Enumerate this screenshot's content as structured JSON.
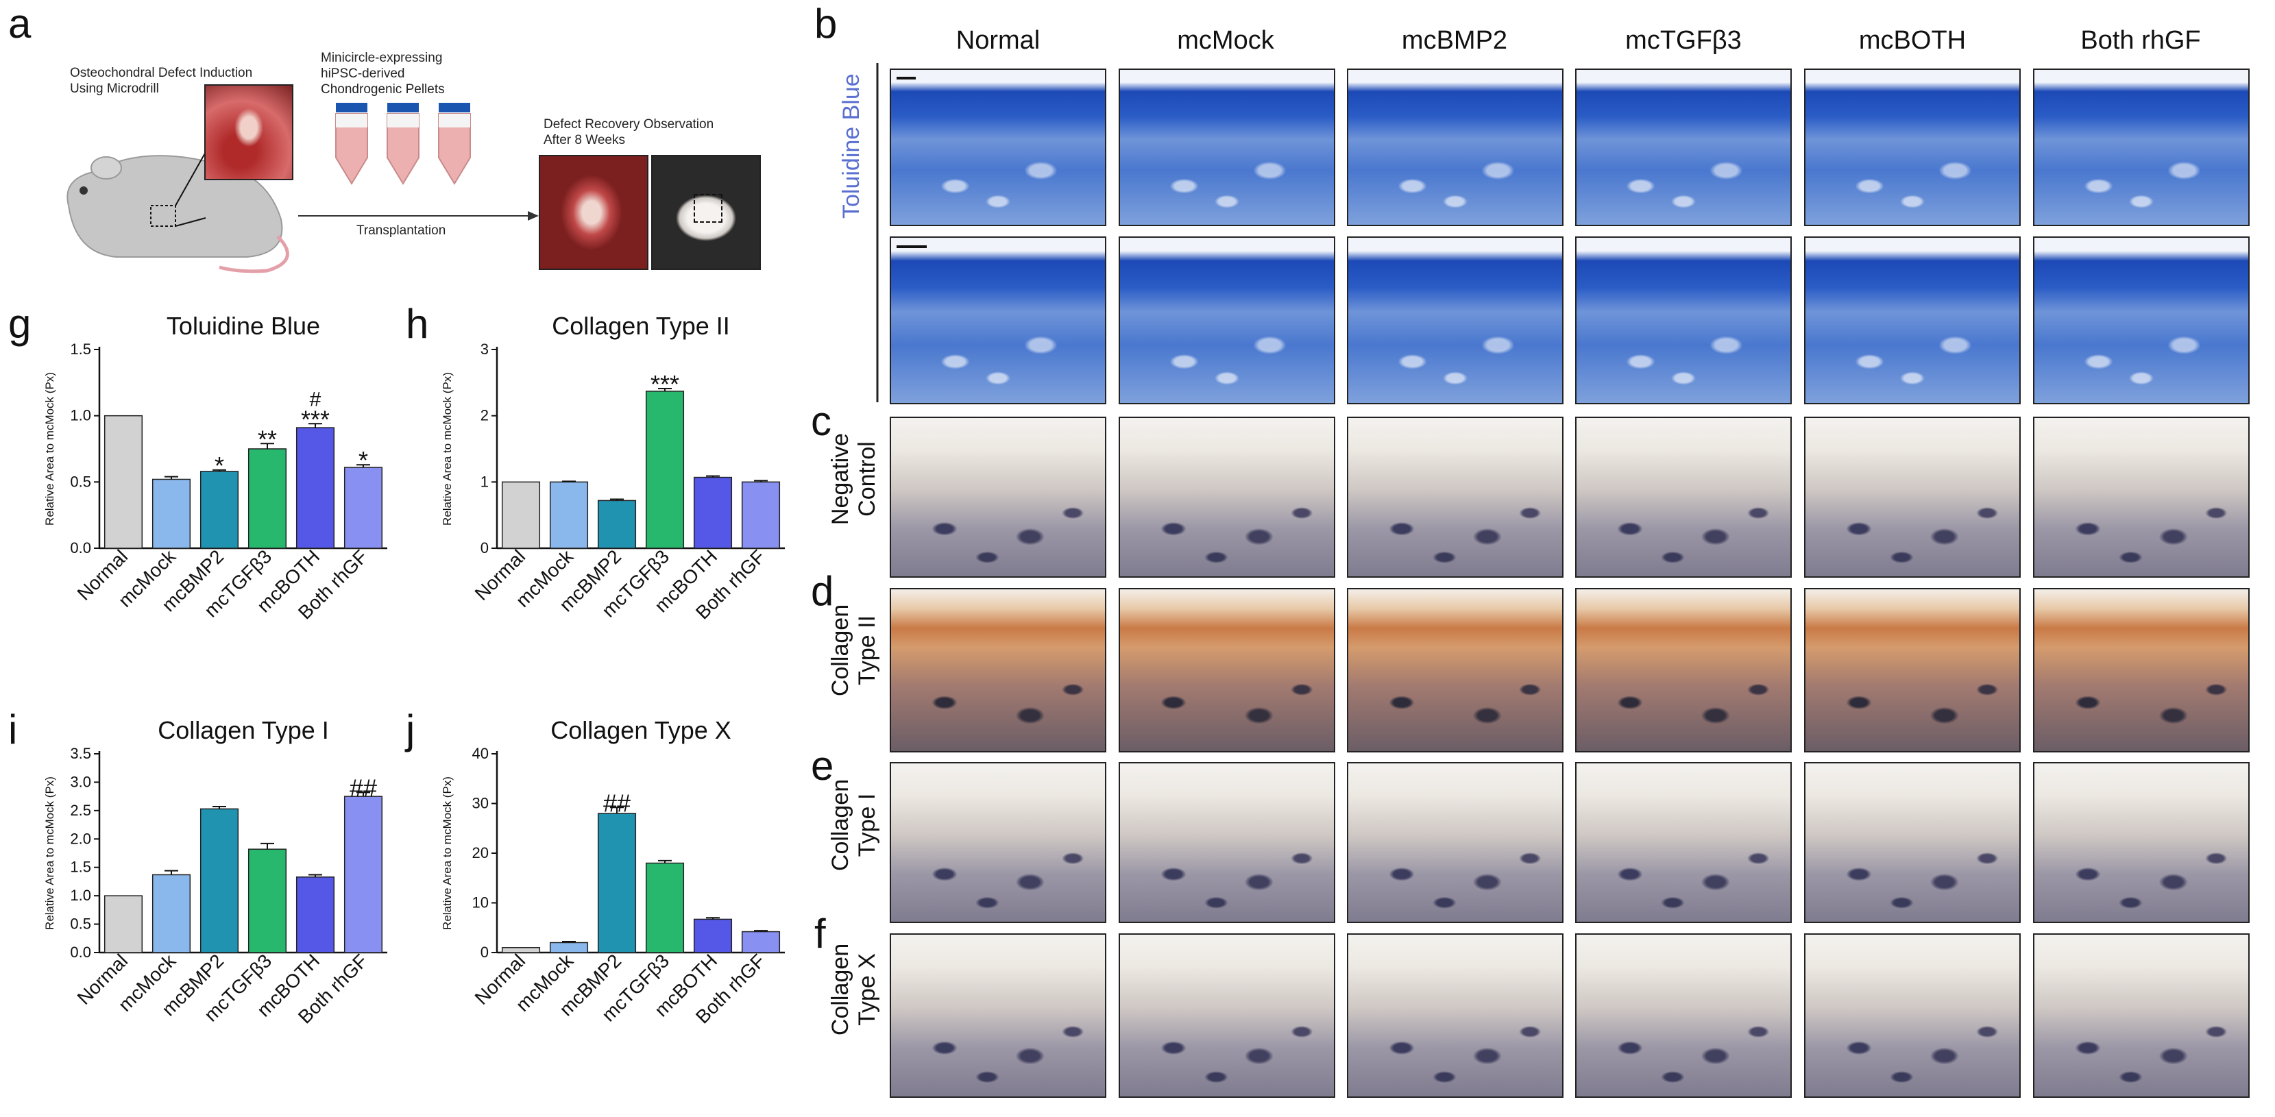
{
  "panel_labels": [
    "a",
    "b",
    "c",
    "d",
    "e",
    "f",
    "g",
    "h",
    "i",
    "j"
  ],
  "schematic": {
    "defect_induction": [
      "Osteochondral Defect Induction",
      "Using Microdrill"
    ],
    "pellets": [
      "Minicircle-expressing",
      "hiPSC-derived",
      "Chondrogenic Pellets"
    ],
    "recovery": [
      "Defect Recovery Observation",
      "After 8 Weeks"
    ],
    "transplantation": "Transplantation"
  },
  "histology": {
    "columns": [
      "Normal",
      "mcMock",
      "mcBMP2",
      "mcTGFβ3",
      "mcBOTH",
      "Both rhGF"
    ],
    "row_labels": {
      "toluidine": "Toluidine Blue",
      "negative": [
        "Negative",
        "Control"
      ],
      "col2": [
        "Collagen",
        "Type II"
      ],
      "col1": [
        "Collagen",
        "Type I"
      ],
      "col10": [
        "Collagen",
        "Type X"
      ]
    },
    "colors": {
      "toluidine_label": "#5a6fd0"
    }
  },
  "chart_data": [
    {
      "id": "g",
      "type": "bar",
      "title": "Toluidine Blue",
      "ylabel": "Relative Area to mcMock (Px)",
      "categories": [
        "Normal",
        "mcMock",
        "mcBMP2",
        "mcTGFβ3",
        "mcBOTH",
        "Both rhGF"
      ],
      "values": [
        1.0,
        0.52,
        0.58,
        0.75,
        0.91,
        0.61
      ],
      "errors": [
        0,
        0.02,
        0.01,
        0.04,
        0.03,
        0.02
      ],
      "annotations": [
        "",
        "",
        "*",
        "**",
        "***",
        "*"
      ],
      "extra_annotations": [
        "",
        "",
        "",
        "",
        "#",
        ""
      ],
      "ylim": [
        0,
        1.5
      ],
      "yticks": [
        "0.0",
        "0.5",
        "1.0",
        "1.5"
      ],
      "ytick_values": [
        0,
        0.5,
        1.0,
        1.5
      ],
      "colors": [
        "#d2d2d2",
        "#8ab8ec",
        "#1f93b0",
        "#27b86e",
        "#5557e6",
        "#8890f2"
      ]
    },
    {
      "id": "h",
      "type": "bar",
      "title": "Collagen Type II",
      "ylabel": "Relative Area to mcMock (Px)",
      "categories": [
        "Normal",
        "mcMock",
        "mcBMP2",
        "mcTGFβ3",
        "mcBOTH",
        "Both rhGF"
      ],
      "values": [
        1.0,
        1.0,
        0.72,
        2.37,
        1.07,
        1.0
      ],
      "errors": [
        0,
        0.01,
        0.02,
        0.04,
        0.02,
        0.02
      ],
      "annotations": [
        "",
        "",
        "",
        "***",
        "",
        ""
      ],
      "extra_annotations": [
        "",
        "",
        "",
        "",
        "",
        ""
      ],
      "ylim": [
        0,
        3
      ],
      "yticks": [
        "0",
        "1",
        "2",
        "3"
      ],
      "ytick_values": [
        0,
        1,
        2,
        3
      ],
      "colors": [
        "#d2d2d2",
        "#8ab8ec",
        "#1f93b0",
        "#27b86e",
        "#5557e6",
        "#8890f2"
      ]
    },
    {
      "id": "i",
      "type": "bar",
      "title": "Collagen Type I",
      "ylabel": "Relative Area to mcMock (Px)",
      "categories": [
        "Normal",
        "mcMock",
        "mcBMP2",
        "mcTGFβ3",
        "mcBOTH",
        "Both rhGF"
      ],
      "values": [
        1.0,
        1.37,
        2.53,
        1.82,
        1.33,
        2.75
      ],
      "errors": [
        0,
        0.07,
        0.04,
        0.1,
        0.04,
        0.07
      ],
      "annotations": [
        "",
        "",
        "",
        "",
        "",
        "##"
      ],
      "extra_annotations": [
        "",
        "",
        "",
        "",
        "",
        ""
      ],
      "ylim": [
        0,
        3.5
      ],
      "yticks": [
        "0.0",
        "0.5",
        "1.0",
        "1.5",
        "2.0",
        "2.5",
        "3.0",
        "3.5"
      ],
      "ytick_values": [
        0,
        0.5,
        1.0,
        1.5,
        2.0,
        2.5,
        3.0,
        3.5
      ],
      "colors": [
        "#d2d2d2",
        "#8ab8ec",
        "#1f93b0",
        "#27b86e",
        "#5557e6",
        "#8890f2"
      ]
    },
    {
      "id": "j",
      "type": "bar",
      "title": "Collagen Type X",
      "ylabel": "Relative Area to mcMock (Px)",
      "categories": [
        "Normal",
        "mcMock",
        "mcBMP2",
        "mcTGFβ3",
        "mcBOTH",
        "Both rhGF"
      ],
      "values": [
        1.0,
        2.0,
        28.0,
        18.0,
        6.7,
        4.2
      ],
      "errors": [
        0,
        0.2,
        1.2,
        0.5,
        0.3,
        0.2
      ],
      "annotations": [
        "",
        "",
        "##",
        "",
        "",
        ""
      ],
      "extra_annotations": [
        "",
        "",
        "",
        "",
        "",
        ""
      ],
      "ylim": [
        0,
        40
      ],
      "yticks": [
        "0",
        "10",
        "20",
        "30",
        "40"
      ],
      "ytick_values": [
        0,
        10,
        20,
        30,
        40
      ],
      "colors": [
        "#d2d2d2",
        "#8ab8ec",
        "#1f93b0",
        "#27b86e",
        "#5557e6",
        "#8890f2"
      ]
    }
  ]
}
